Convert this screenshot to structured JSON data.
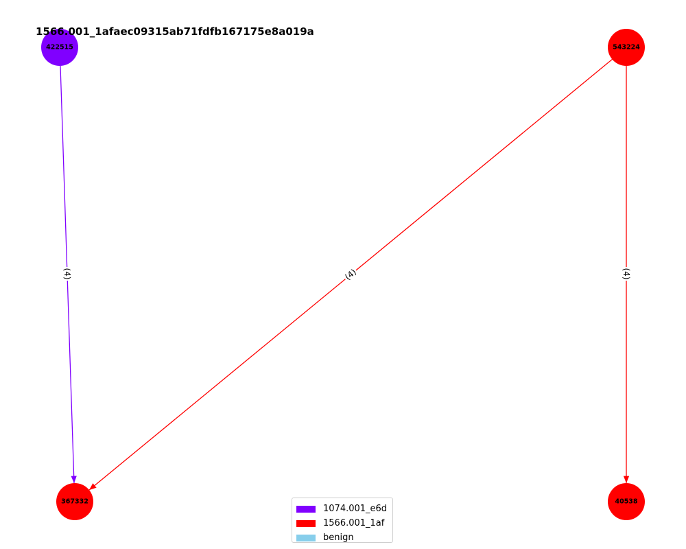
{
  "title": "1566.001_1afaec09315ab71fdfb167175e8a019a",
  "nodes": [
    {
      "id": "422515",
      "group": "1074.001_e6d"
    },
    {
      "id": "543224",
      "group": "1566.001_1af"
    },
    {
      "id": "367332",
      "group": "1566.001_1af"
    },
    {
      "id": "40538",
      "group": "1566.001_1af"
    }
  ],
  "edges": [
    {
      "from": "422515",
      "to": "367332",
      "label": "(4)",
      "group": "1074.001_e6d"
    },
    {
      "from": "543224",
      "to": "367332",
      "label": "(4)",
      "group": "1566.001_1af"
    },
    {
      "from": "543224",
      "to": "40538",
      "label": "(4)",
      "group": "1566.001_1af"
    }
  ],
  "legend": [
    {
      "label": "1074.001_e6d",
      "color": "#8000ff"
    },
    {
      "label": "1566.001_1af",
      "color": "#ff0000"
    },
    {
      "label": "benign",
      "color": "#87ceeb"
    }
  ],
  "colors": {
    "1074.001_e6d": "#8000ff",
    "1566.001_1af": "#ff0000",
    "benign": "#87ceeb"
  }
}
